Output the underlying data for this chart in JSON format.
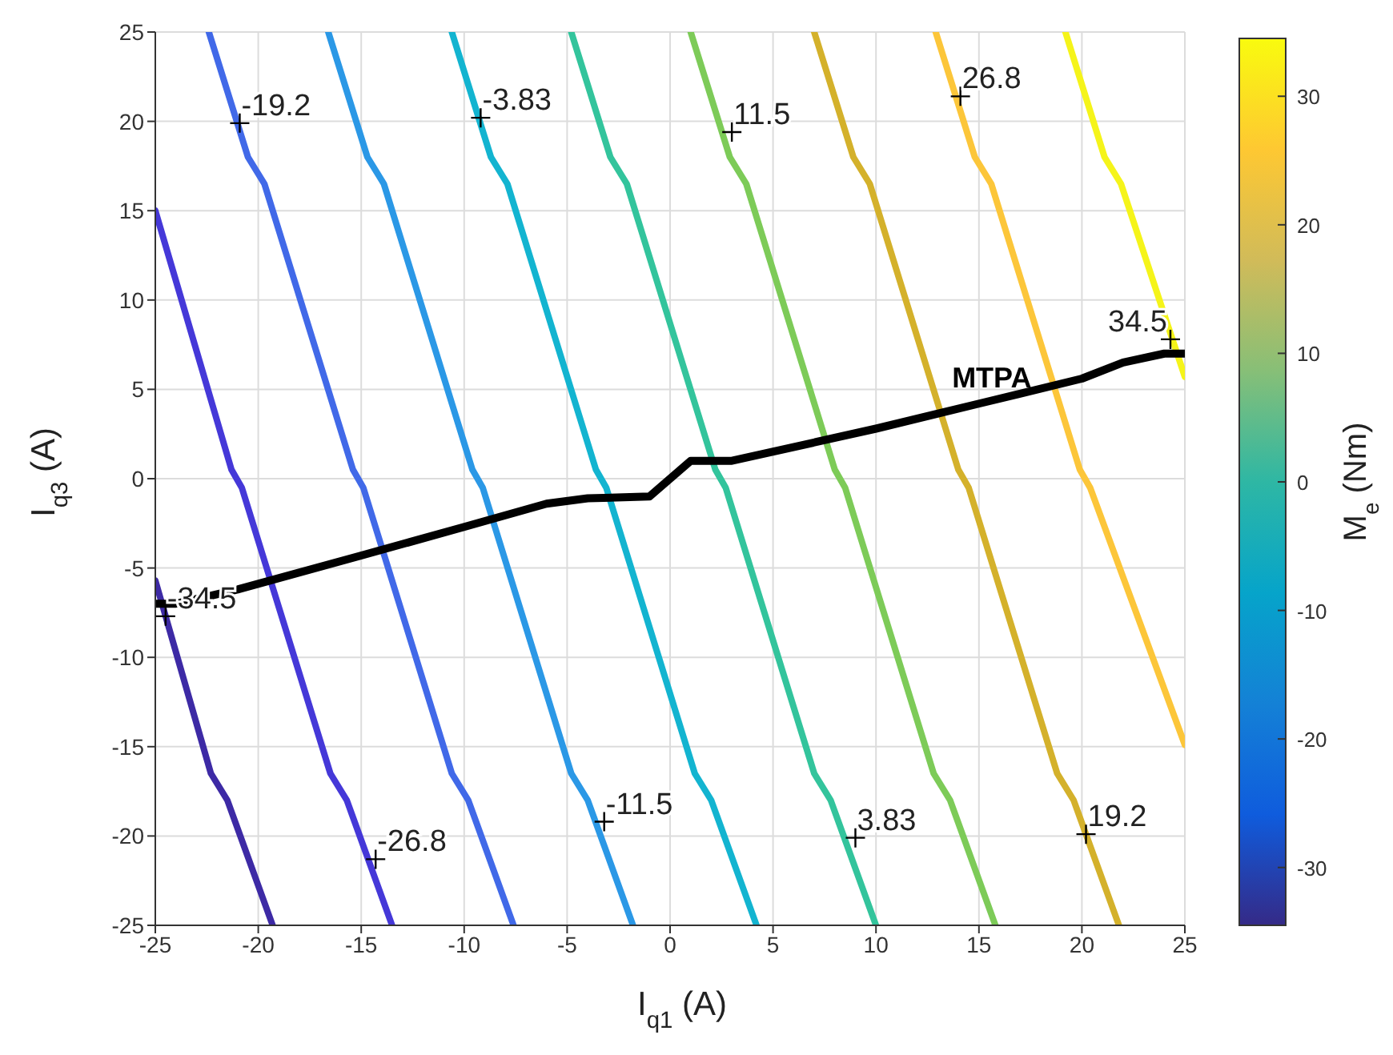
{
  "chart_data": {
    "type": "line",
    "xlabel": "I$_{q1}$ (A)",
    "ylabel": "I$_{q3}$ (A)",
    "clabel": "M$_{e}$ (Nm)",
    "xlim": [
      -25,
      25
    ],
    "xticks": [
      -25,
      -20,
      -15,
      -10,
      -5,
      0,
      5,
      10,
      15,
      20,
      25
    ],
    "ylim": [
      -25,
      25
    ],
    "yticks": [
      -25,
      -20,
      -15,
      -10,
      -5,
      0,
      5,
      10,
      15,
      20,
      25
    ],
    "clim": [
      -34.5,
      34.5
    ],
    "cticks": [
      -30,
      -20,
      -10,
      0,
      10,
      20,
      30
    ],
    "grid": true,
    "marker": "none",
    "line_style": "solid",
    "series": [
      {
        "color": "#3d2aa5",
        "x": [
          -25,
          -22.3,
          -21.5,
          -19.3
        ],
        "values": [
          -5.7,
          -16.5,
          -18,
          -25
        ]
      },
      {
        "color": "#4538d8",
        "x": [
          -25,
          -21.3,
          -20.8,
          -16.5,
          -15.7,
          -13.5
        ],
        "values": [
          15,
          0.5,
          -0.5,
          -16.5,
          -18,
          -25
        ]
      },
      {
        "color": "#4169e8",
        "x": [
          -22.4,
          -20.5,
          -19.7,
          -15.4,
          -14.9,
          -10.6,
          -9.8,
          -7.6
        ],
        "values": [
          25,
          18,
          16.5,
          0.5,
          -0.5,
          -16.5,
          -18,
          -25
        ]
      },
      {
        "color": "#2b98e6",
        "x": [
          -16.6,
          -14.7,
          -13.9,
          -9.6,
          -9.1,
          -4.8,
          -4,
          -1.8
        ],
        "values": [
          25,
          18,
          16.5,
          0.5,
          -0.5,
          -16.5,
          -18,
          -25
        ]
      },
      {
        "color": "#13b4d0",
        "x": [
          -10.6,
          -8.7,
          -7.9,
          -3.6,
          -3.1,
          1.2,
          2,
          4.2
        ],
        "values": [
          25,
          18,
          16.5,
          0.5,
          -0.5,
          -16.5,
          -18,
          -25
        ]
      },
      {
        "color": "#33c49c",
        "x": [
          -4.8,
          -2.9,
          -2.1,
          2.2,
          2.7,
          7,
          7.8,
          10
        ],
        "values": [
          25,
          18,
          16.5,
          0.5,
          -0.5,
          -16.5,
          -18,
          -25
        ]
      },
      {
        "color": "#7dcb58",
        "x": [
          1,
          2.9,
          3.7,
          8,
          8.5,
          12.8,
          13.6,
          15.8
        ],
        "values": [
          25,
          18,
          16.5,
          0.5,
          -0.5,
          -16.5,
          -18,
          -25
        ]
      },
      {
        "color": "#d4b12b",
        "x": [
          7,
          8.9,
          9.7,
          14,
          14.5,
          18.8,
          19.6,
          21.8
        ],
        "values": [
          25,
          18,
          16.5,
          0.5,
          -0.5,
          -16.5,
          -18,
          -25
        ]
      },
      {
        "color": "#fcc63a",
        "x": [
          12.9,
          14.8,
          15.6,
          19.9,
          20.4,
          25
        ],
        "values": [
          25,
          18,
          16.5,
          0.5,
          -0.5,
          -14.9
        ]
      },
      {
        "color": "#f5f41a",
        "x": [
          19.2,
          21.1,
          21.9,
          25
        ],
        "values": [
          25,
          18,
          16.5,
          5.7
        ]
      },
      {
        "name": "MTPA",
        "color": "#000000",
        "x": [
          -25,
          -24,
          -21,
          -15,
          -10,
          -6,
          -4,
          -1,
          1,
          3,
          10,
          15,
          20,
          22,
          24,
          25
        ],
        "values": [
          -7,
          -7,
          -6.2,
          -4.3,
          -2.7,
          -1.4,
          -1.1,
          -1,
          1,
          1,
          2.8,
          4.2,
          5.6,
          6.5,
          7,
          7
        ]
      }
    ],
    "annotations": [
      {
        "text": "-34.5",
        "x": -24.5,
        "y": -7.7
      },
      {
        "text": "-26.8",
        "x": -14.3,
        "y": -21.3
      },
      {
        "text": "-19.2",
        "x": -20.9,
        "y": 19.9
      },
      {
        "text": "-11.5",
        "x": -3.2,
        "y": -19.2
      },
      {
        "text": "-3.83",
        "x": -9.2,
        "y": 20.2
      },
      {
        "text": "3.83",
        "x": 9,
        "y": -20.1
      },
      {
        "text": "11.5",
        "x": 3,
        "y": 19.4
      },
      {
        "text": "19.2",
        "x": 20.2,
        "y": -19.9
      },
      {
        "text": "26.8",
        "x": 14.1,
        "y": 21.4
      },
      {
        "text": "34.5",
        "x": 24.3,
        "y": 7.8
      }
    ]
  }
}
